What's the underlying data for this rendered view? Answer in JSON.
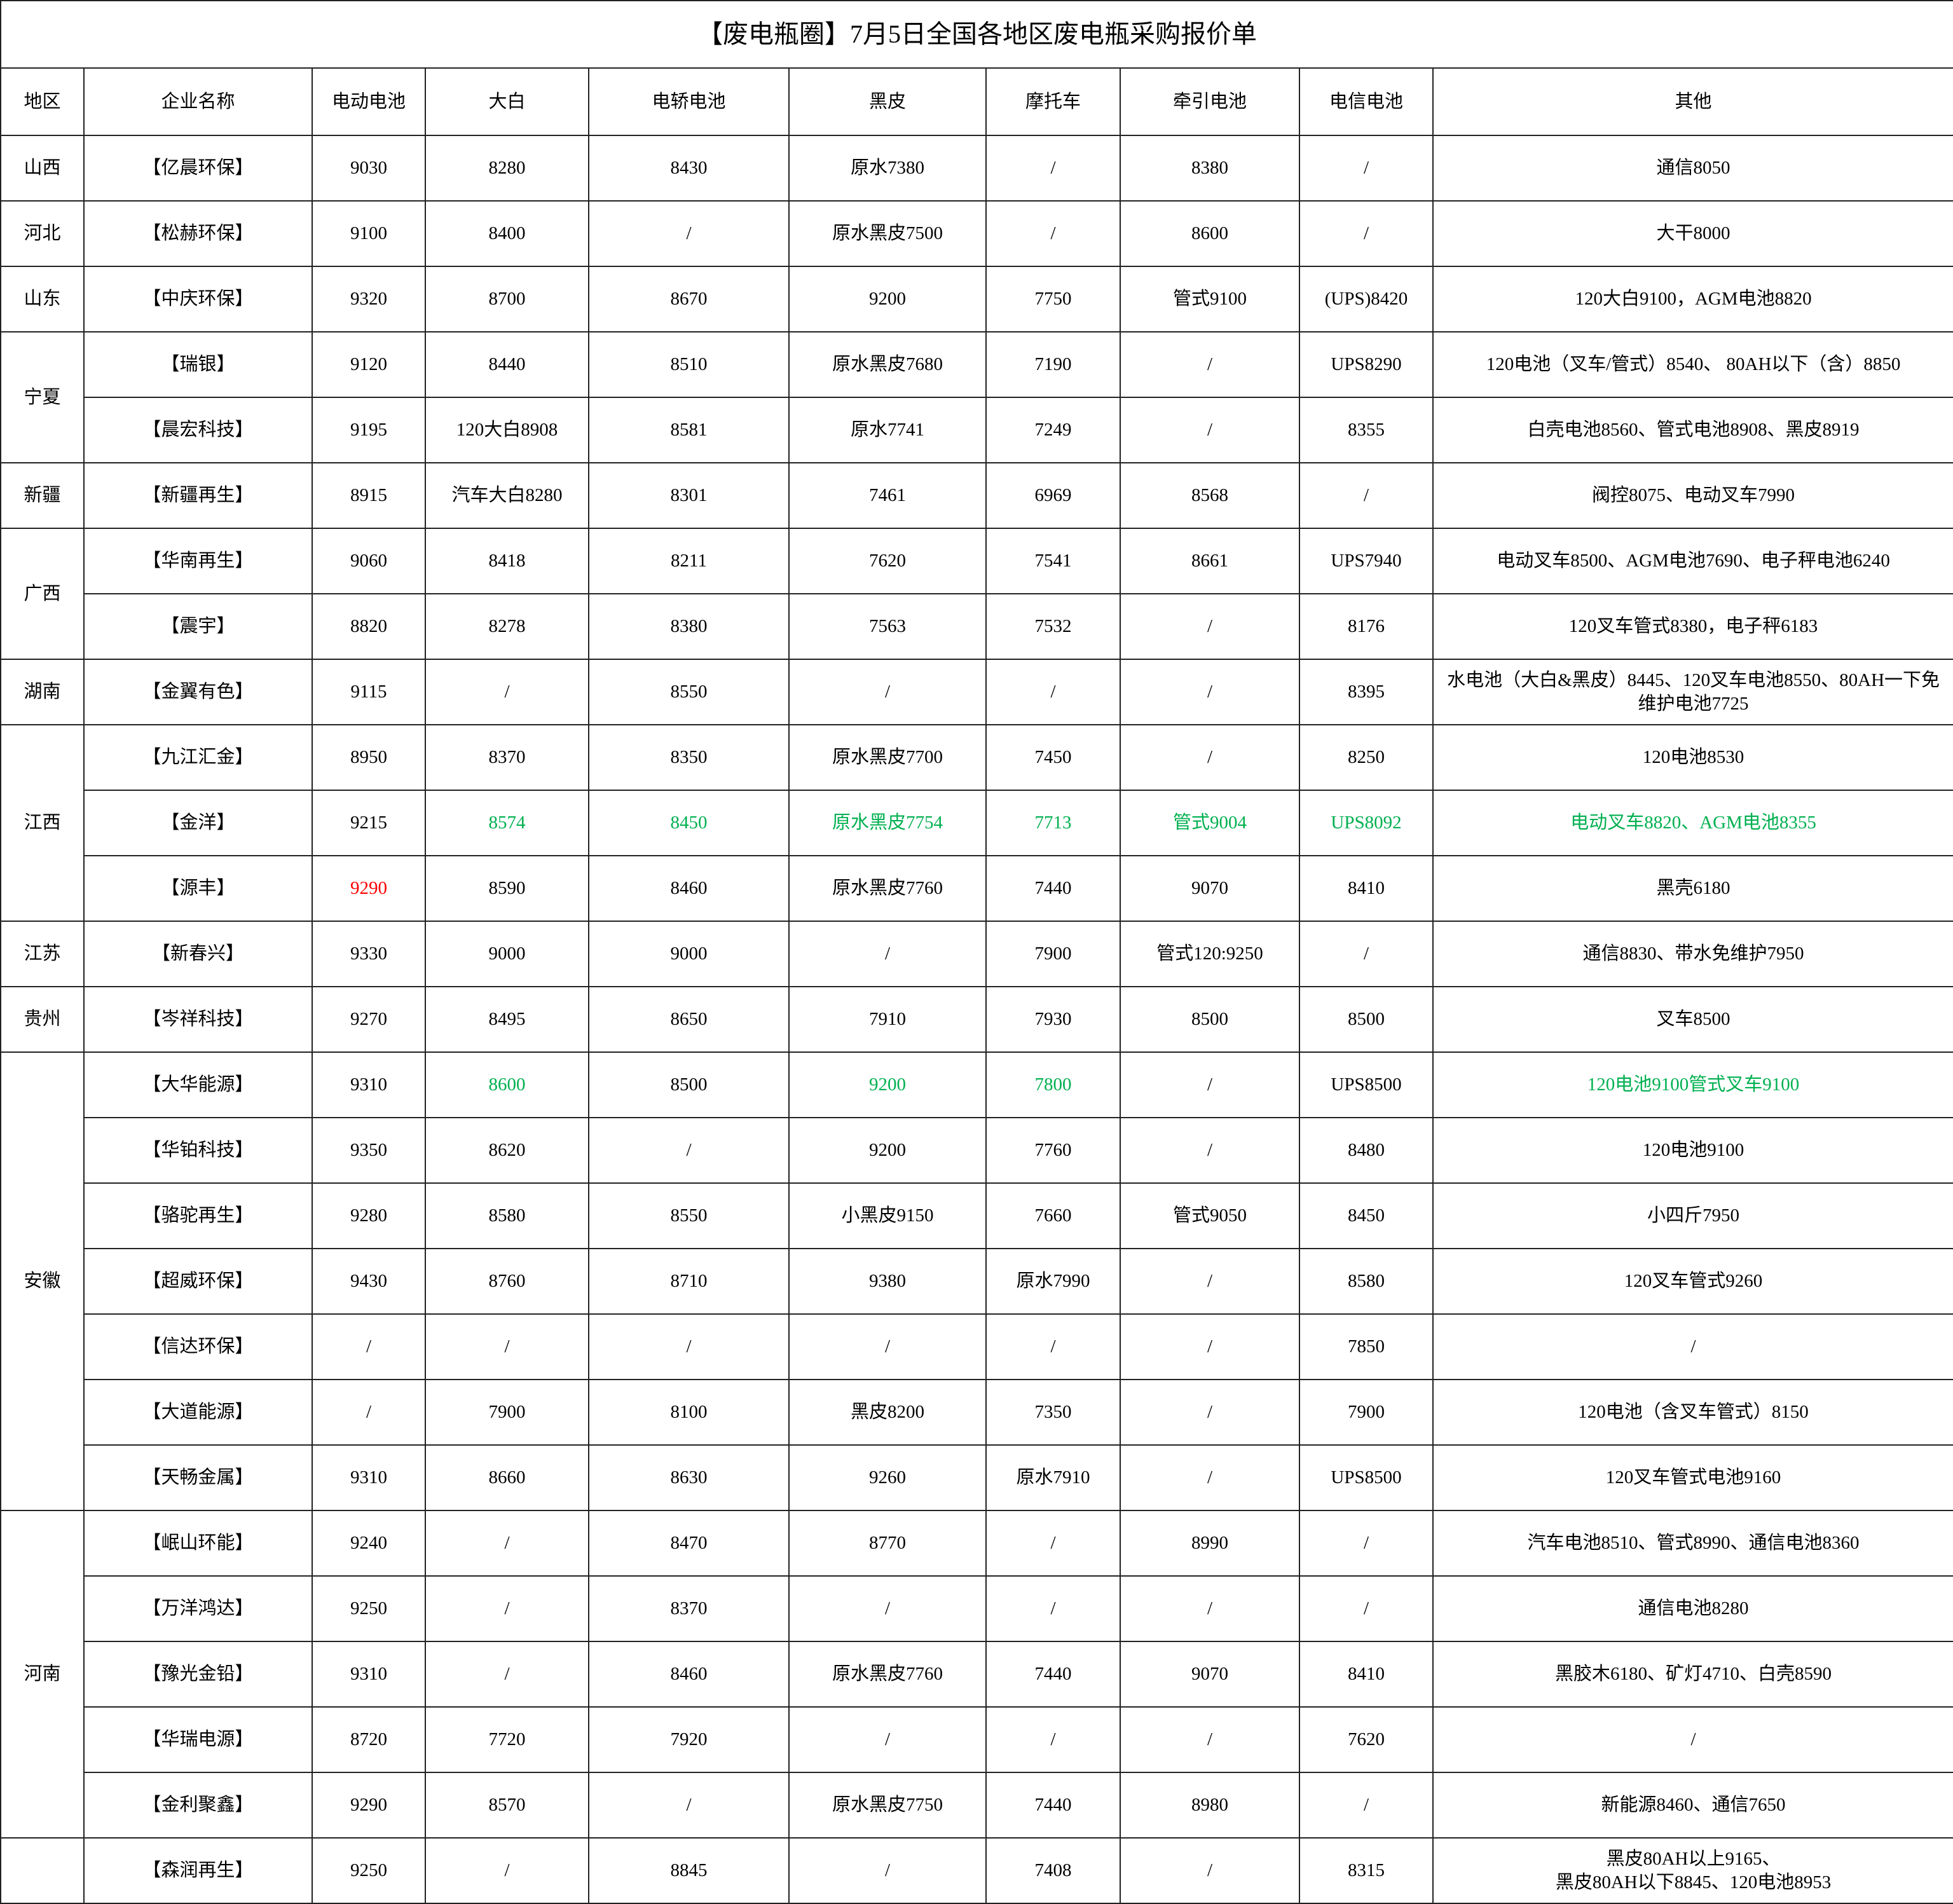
{
  "title": "【废电瓶圈】7月5日全国各地区废电瓶采购报价单",
  "table": {
    "header": [
      "地区",
      "企业名称",
      "电动电池",
      "大白",
      "电轿电池",
      "黑皮",
      "摩托车",
      "牵引电池",
      "电信电池",
      "其他"
    ],
    "groups": [
      {
        "region": "山西",
        "rows": [
          [
            "【亿晨环保】",
            "9030",
            "8280",
            "8430",
            "原水7380",
            "/",
            "8380",
            "/",
            "通信8050"
          ]
        ]
      },
      {
        "region": "河北",
        "rows": [
          [
            "【松赫环保】",
            "9100",
            "8400",
            "/",
            "原水黑皮7500",
            "/",
            "8600",
            "/",
            "大干8000"
          ]
        ]
      },
      {
        "region": "山东",
        "rows": [
          [
            "【中庆环保】",
            "9320",
            "8700",
            "8670",
            "9200",
            "7750",
            "管式9100",
            "(UPS)8420",
            "120大白9100，AGM电池8820"
          ]
        ]
      },
      {
        "region": "宁夏",
        "rows": [
          [
            "【瑞银】",
            "9120",
            "8440",
            "8510",
            "原水黑皮7680",
            "7190",
            "/",
            "UPS8290",
            "120电池（叉车/管式）8540、 80AH以下（含）8850"
          ],
          [
            "【晨宏科技】",
            "9195",
            "120大白8908",
            "8581",
            "原水7741",
            "7249",
            "/",
            "8355",
            "白壳电池8560、管式电池8908、黑皮8919"
          ]
        ]
      },
      {
        "region": "新疆",
        "rows": [
          [
            "【新疆再生】",
            "8915",
            "汽车大白8280",
            "8301",
            "7461",
            "6969",
            "8568",
            "/",
            "阀控8075、电动叉车7990"
          ]
        ]
      },
      {
        "region": "广西",
        "rows": [
          [
            "【华南再生】",
            "9060",
            "8418",
            "8211",
            "7620",
            "7541",
            "8661",
            "UPS7940",
            "电动叉车8500、AGM电池7690、电子秤电池6240"
          ],
          [
            "【震宇】",
            "8820",
            "8278",
            "8380",
            "7563",
            "7532",
            "/",
            "8176",
            "120叉车管式8380，电子秤6183"
          ]
        ]
      },
      {
        "region": "湖南",
        "rows": [
          [
            "【金翼有色】",
            "9115",
            "/",
            "8550",
            "/",
            "/",
            "/",
            "8395",
            "水电池（大白&黑皮）8445、120叉车电池8550、80AH一下免维护电池7725"
          ]
        ]
      },
      {
        "region": "江西",
        "rows": [
          [
            "【九江汇金】",
            "8950",
            "8370",
            "8350",
            "原水黑皮7700",
            "7450",
            "/",
            "8250",
            "120电池8530"
          ],
          [
            "【金洋】",
            "9215",
            {
              "text": "8574",
              "color": "#00b050"
            },
            {
              "text": "8450",
              "color": "#00b050"
            },
            {
              "text": "原水黑皮7754",
              "color": "#00b050"
            },
            {
              "text": "7713",
              "color": "#00b050"
            },
            {
              "text": "管式9004",
              "color": "#00b050"
            },
            {
              "text": "UPS8092",
              "color": "#00b050"
            },
            {
              "text": "电动叉车8820、AGM电池8355",
              "color": "#00b050"
            }
          ],
          [
            "【源丰】",
            {
              "text": "9290",
              "color": "#ff0000"
            },
            "8590",
            "8460",
            "原水黑皮7760",
            "7440",
            "9070",
            "8410",
            "黑壳6180"
          ]
        ]
      },
      {
        "region": "江苏",
        "rows": [
          [
            "【新春兴】",
            "9330",
            "9000",
            "9000",
            "/",
            "7900",
            "管式120:9250",
            "/",
            "通信8830、带水免维护7950"
          ]
        ]
      },
      {
        "region": "贵州",
        "rows": [
          [
            "【岑祥科技】",
            "9270",
            "8495",
            "8650",
            "7910",
            "7930",
            "8500",
            "8500",
            "叉车8500"
          ]
        ]
      },
      {
        "region": "安徽",
        "rows": [
          [
            "【大华能源】",
            "9310",
            {
              "text": "8600",
              "color": "#00b050"
            },
            "8500",
            {
              "text": "9200",
              "color": "#00b050"
            },
            {
              "text": "7800",
              "color": "#00b050"
            },
            "/",
            "UPS8500",
            {
              "text": "120电池9100管式叉车9100",
              "color": "#00b050"
            }
          ],
          [
            "【华铂科技】",
            "9350",
            "8620",
            "/",
            "9200",
            "7760",
            "/",
            "8480",
            "120电池9100"
          ],
          [
            "【骆驼再生】",
            "9280",
            "8580",
            "8550",
            "小黑皮9150",
            "7660",
            "管式9050",
            "8450",
            "小四斤7950"
          ],
          [
            "【超威环保】",
            "9430",
            "8760",
            "8710",
            "9380",
            "原水7990",
            "/",
            "8580",
            "120叉车管式9260"
          ],
          [
            "【信达环保】",
            "/",
            "/",
            "/",
            "/",
            "/",
            "/",
            "7850",
            "/"
          ],
          [
            "【大道能源】",
            "/",
            "7900",
            "8100",
            "黑皮8200",
            "7350",
            "/",
            "7900",
            "120电池（含叉车管式）8150"
          ],
          [
            "【天畅金属】",
            "9310",
            "8660",
            "8630",
            "9260",
            "原水7910",
            "/",
            "UPS8500",
            "120叉车管式电池9160"
          ]
        ]
      },
      {
        "region": "河南",
        "rows": [
          [
            "【岷山环能】",
            "9240",
            "/",
            "8470",
            "8770",
            "/",
            "8990",
            "/",
            "汽车电池8510、管式8990、通信电池8360"
          ],
          [
            "【万洋鸿达】",
            "9250",
            "/",
            "8370",
            "/",
            "/",
            "/",
            "/",
            "通信电池8280"
          ],
          [
            "【豫光金铅】",
            "9310",
            "/",
            "8460",
            "原水黑皮7760",
            "7440",
            "9070",
            "8410",
            "黑胶木6180、矿灯4710、白壳8590"
          ],
          [
            "【华瑞电源】",
            "8720",
            "7720",
            "7920",
            "/",
            "/",
            "/",
            "7620",
            "/"
          ],
          [
            "【金利聚鑫】",
            "9290",
            "8570",
            "/",
            "原水黑皮7750",
            "7440",
            "8980",
            "/",
            "新能源8460、通信7650"
          ]
        ]
      },
      {
        "rows": [
          [
            "【森润再生】",
            "9250",
            "/",
            "8845",
            "/",
            "7408",
            "/",
            "8315",
            "黑皮80AH以上9165、\n黑皮80AH以下8845、120电池8953"
          ]
        ]
      }
    ]
  }
}
